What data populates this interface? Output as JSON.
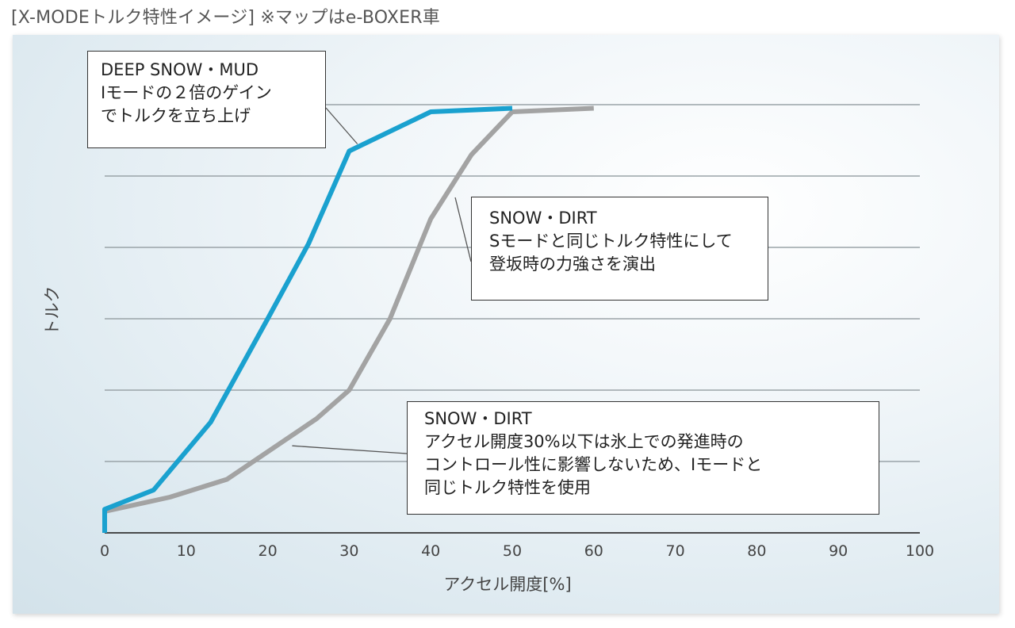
{
  "page": {
    "title": "[X-MODEトルク特性イメージ] ※マップはe-BOXER車"
  },
  "chart_data": {
    "type": "line",
    "title": "",
    "xlabel": "アクセル開度[%]",
    "ylabel": "トルク",
    "xlim": [
      0,
      100
    ],
    "ylim": [
      0,
      6
    ],
    "x_ticks": [
      "0",
      "10",
      "20",
      "30",
      "40",
      "50",
      "60",
      "70",
      "80",
      "90",
      "100"
    ],
    "grid": "horizontal",
    "series": [
      {
        "name": "DEEP SNOW・MUD",
        "color": "#1aa1cf",
        "points": [
          [
            0,
            0
          ],
          [
            0,
            0.33
          ],
          [
            6,
            0.6
          ],
          [
            13,
            1.55
          ],
          [
            20,
            3.0
          ],
          [
            25,
            4.05
          ],
          [
            30,
            5.35
          ],
          [
            40,
            5.9
          ],
          [
            50,
            5.95
          ]
        ]
      },
      {
        "name": "SNOW・DIRT",
        "color": "#a3a3a3",
        "points": [
          [
            0,
            0.3
          ],
          [
            8,
            0.5
          ],
          [
            15,
            0.75
          ],
          [
            26,
            1.6
          ],
          [
            30,
            2.0
          ],
          [
            35,
            3.0
          ],
          [
            40,
            4.4
          ],
          [
            45,
            5.3
          ],
          [
            50,
            5.9
          ],
          [
            60,
            5.95
          ]
        ]
      }
    ],
    "annotations": [
      {
        "lines": [
          "DEEP SNOW・MUD",
          "Iモードの２倍のゲイン",
          "でトルクを立ち上げ"
        ],
        "target": [
          31,
          5.45
        ]
      },
      {
        "lines": [
          "SNOW・DIRT",
          "Sモードと同じトルク特性にして",
          "登坂時の力強さを演出"
        ],
        "target": [
          43,
          4.7
        ]
      },
      {
        "lines": [
          "SNOW・DIRT",
          " アクセル開度30%以下は氷上での発進時の",
          "コントロール性に影響しないため、Iモードと",
          "同じトルク特性を使用"
        ],
        "target": [
          23,
          1.22
        ]
      }
    ]
  }
}
